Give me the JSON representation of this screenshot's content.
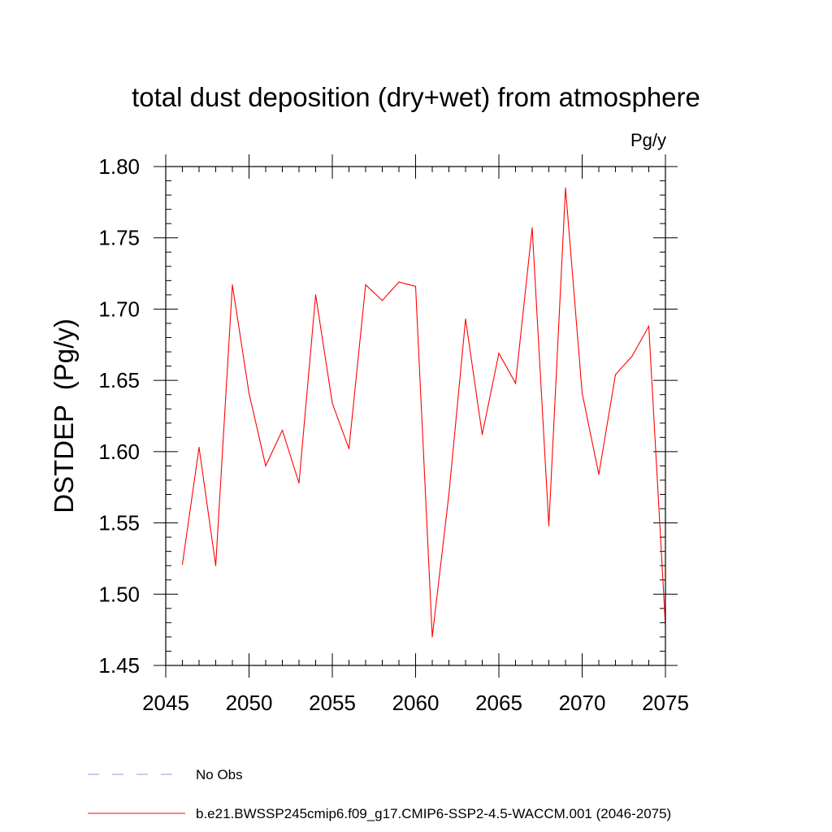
{
  "chart_data": {
    "type": "line",
    "title": "total dust deposition (dry+wet) from atmosphere",
    "units_label": "Pg/y",
    "xlabel": "",
    "ylabel": "DSTDEP  (Pg/y)",
    "xlim": [
      2045,
      2075
    ],
    "ylim": [
      1.45,
      1.8
    ],
    "x_ticks": [
      2045,
      2050,
      2055,
      2060,
      2065,
      2070,
      2075
    ],
    "y_ticks": [
      "1.45",
      "1.50",
      "1.55",
      "1.60",
      "1.65",
      "1.70",
      "1.75",
      "1.80"
    ],
    "x": [
      2046,
      2047,
      2048,
      2049,
      2050,
      2051,
      2052,
      2053,
      2054,
      2055,
      2056,
      2057,
      2058,
      2059,
      2060,
      2061,
      2062,
      2063,
      2064,
      2065,
      2066,
      2067,
      2068,
      2069,
      2070,
      2071,
      2072,
      2073,
      2074,
      2075
    ],
    "series": [
      {
        "name": "b.e21.BWSSP245cmip6.f09_g17.CMIP6-SSP2-4.5-WACCM.001 (2046-2075)",
        "color": "#ff0000",
        "values": [
          1.521,
          1.603,
          1.52,
          1.717,
          1.641,
          1.59,
          1.615,
          1.578,
          1.71,
          1.634,
          1.602,
          1.717,
          1.706,
          1.719,
          1.716,
          1.47,
          1.57,
          1.693,
          1.612,
          1.669,
          1.648,
          1.757,
          1.548,
          1.785,
          1.641,
          1.584,
          1.654,
          1.667,
          1.688,
          1.478
        ]
      }
    ],
    "legend": [
      {
        "label": "No Obs",
        "style": "dashed",
        "color": "#9999dd"
      },
      {
        "label": "b.e21.BWSSP245cmip6.f09_g17.CMIP6-SSP2-4.5-WACCM.001 (2046-2075)",
        "style": "solid",
        "color": "#ff0000"
      }
    ]
  }
}
